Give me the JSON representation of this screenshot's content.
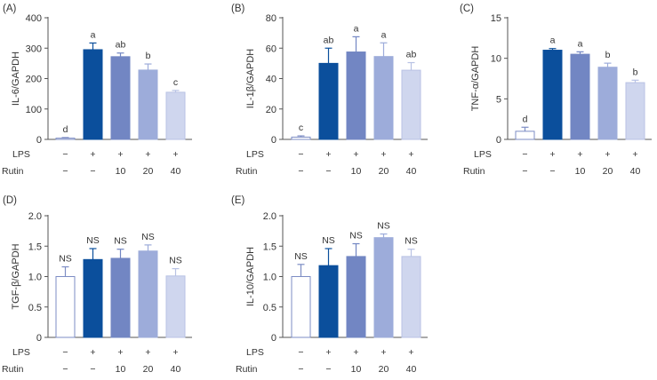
{
  "chart_data": [
    {
      "panel": "(A)",
      "type": "bar",
      "ylabel": "IL-6/GAPDH",
      "ylim": [
        0,
        400
      ],
      "yticks": [
        "0",
        "100",
        "200",
        "300",
        "400"
      ],
      "values": [
        4,
        295,
        272,
        228,
        155
      ],
      "errors": [
        2,
        22,
        12,
        20,
        6
      ],
      "letters": [
        "d",
        "a",
        "ab",
        "b",
        "c"
      ],
      "lps": [
        "−",
        "+",
        "+",
        "+",
        "+"
      ],
      "rutin": [
        "−",
        "−",
        "10",
        "20",
        "40"
      ]
    },
    {
      "panel": "(B)",
      "type": "bar",
      "ylabel": "IL-1β/GAPDH",
      "ylim": [
        0,
        80
      ],
      "yticks": [
        "0",
        "20",
        "40",
        "60",
        "80"
      ],
      "values": [
        1.5,
        50,
        57.5,
        54.5,
        45.5
      ],
      "errors": [
        0.8,
        10,
        10,
        9,
        5
      ],
      "letters": [
        "c",
        "ab",
        "a",
        "a",
        "ab"
      ],
      "lps": [
        "−",
        "+",
        "+",
        "+",
        "+"
      ],
      "rutin": [
        "−",
        "−",
        "10",
        "20",
        "40"
      ]
    },
    {
      "panel": "(C)",
      "type": "bar",
      "ylabel": "TNF-α/GAPDH",
      "ylim": [
        0,
        15
      ],
      "yticks": [
        "0",
        "5",
        "10",
        "15"
      ],
      "values": [
        1.0,
        11.0,
        10.5,
        8.9,
        7.0
      ],
      "errors": [
        0.5,
        0.2,
        0.3,
        0.5,
        0.3
      ],
      "letters": [
        "d",
        "a",
        "a",
        "b",
        "b"
      ],
      "lps": [
        "−",
        "+",
        "+",
        "+",
        "+"
      ],
      "rutin": [
        "−",
        "−",
        "10",
        "20",
        "40"
      ]
    },
    {
      "panel": "(D)",
      "type": "bar",
      "ylabel": "TGF-β/GAPDH",
      "ylim": [
        0,
        2.0
      ],
      "yticks": [
        "0",
        "0.5",
        "1.0",
        "1.5",
        "2.0"
      ],
      "values": [
        1.0,
        1.28,
        1.3,
        1.42,
        1.01
      ],
      "errors": [
        0.16,
        0.18,
        0.15,
        0.1,
        0.12
      ],
      "letters": [
        "NS",
        "NS",
        "NS",
        "NS",
        "NS"
      ],
      "lps": [
        "−",
        "+",
        "+",
        "+",
        "+"
      ],
      "rutin": [
        "−",
        "−",
        "10",
        "20",
        "40"
      ]
    },
    {
      "panel": "(E)",
      "type": "bar",
      "ylabel": "IL-10/GAPDH",
      "ylim": [
        0,
        2.0
      ],
      "yticks": [
        "0",
        "0.5",
        "1.0",
        "1.5",
        "2.0"
      ],
      "values": [
        1.0,
        1.18,
        1.33,
        1.64,
        1.33
      ],
      "errors": [
        0.2,
        0.28,
        0.21,
        0.06,
        0.12
      ],
      "letters": [
        "NS",
        "NS",
        "NS",
        "NS",
        "NS"
      ],
      "lps": [
        "−",
        "+",
        "+",
        "+",
        "+"
      ],
      "rutin": [
        "−",
        "−",
        "10",
        "20",
        "40"
      ]
    }
  ],
  "treatment_labels": {
    "lps": "LPS",
    "rutin": "Rutin"
  },
  "colors": {
    "bars": [
      "#ffffff",
      "#0b4f9c",
      "#7286c3",
      "#9dacda",
      "#cfd6ee"
    ],
    "outline": [
      "#7d8dc4",
      "#0b4f9c",
      "#7286c3",
      "#9dacda",
      "#b8c2e4"
    ],
    "axis": "#555555"
  }
}
